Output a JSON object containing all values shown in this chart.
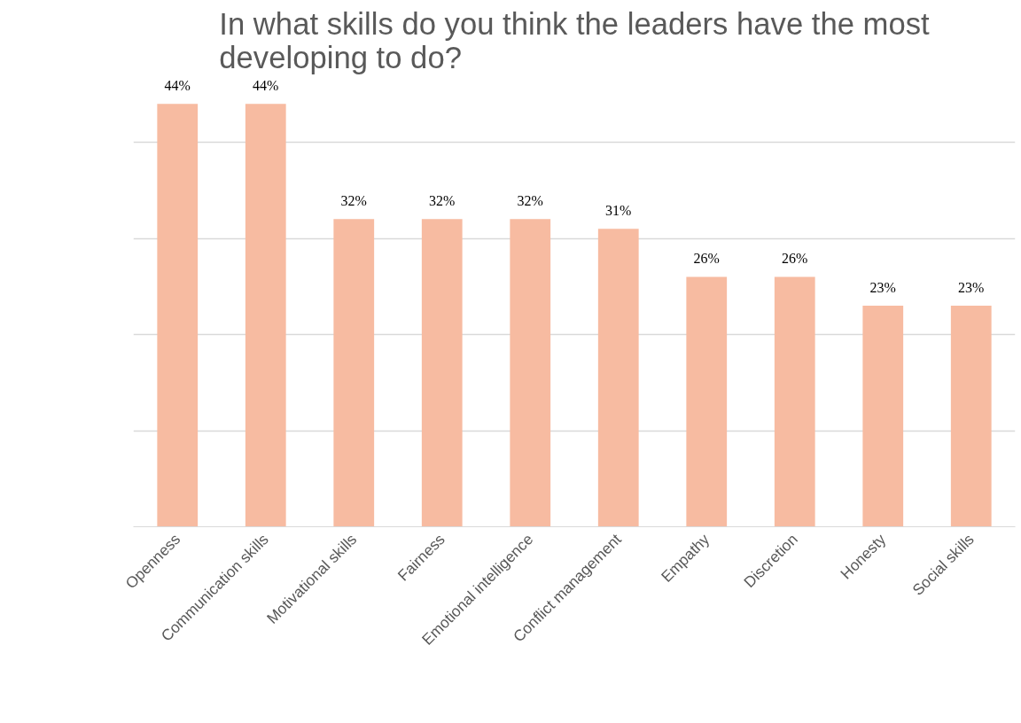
{
  "chart_data": {
    "type": "bar",
    "title": "In what skills do you think the leaders have the most developing to do?",
    "categories": [
      "Openness",
      "Communication skills",
      "Motivational skills",
      "Fairness",
      "Emotional intelligence",
      "Conflict management",
      "Empathy",
      "Discretion",
      "Honesty",
      "Social skills"
    ],
    "values": [
      44,
      44,
      32,
      32,
      32,
      31,
      26,
      26,
      23,
      23
    ],
    "value_labels": [
      "44%",
      "44%",
      "32%",
      "32%",
      "32%",
      "31%",
      "26%",
      "26%",
      "23%",
      "23%"
    ],
    "color": "#f7bba1",
    "grid": "y",
    "tick_labels": "x"
  }
}
